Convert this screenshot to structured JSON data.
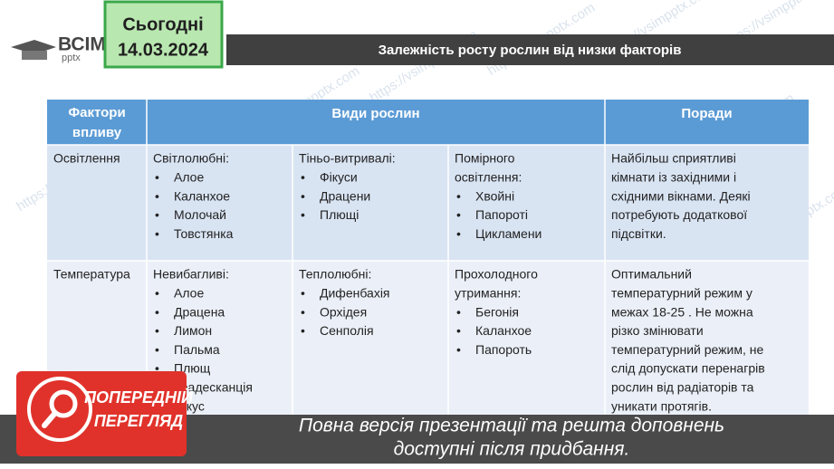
{
  "header": {
    "date_label": "Сьогодні",
    "date": "14.03.2024",
    "logo_top": "ВСІМ",
    "logo_bottom": "pptx",
    "title": "Залежність росту рослин від низки факторів"
  },
  "table": {
    "header": [
      "Фактори впливу",
      "Види рослин",
      "Поради"
    ],
    "rows": [
      {
        "factor": "Освітлення",
        "groups": [
          {
            "heading": [
              "Світлолюбні:"
            ],
            "items": [
              "Алое",
              "Каланхое",
              "Молочай",
              "Товстянка"
            ]
          },
          {
            "heading": [
              "Тіньо-витривалі:"
            ],
            "items": [
              "Фікуси",
              "Драцени",
              "Плющі"
            ]
          },
          {
            "heading": [
              "Помірного",
              "освітлення:"
            ],
            "items": [
              "Хвойні",
              "Папороті",
              "Цикламени"
            ]
          }
        ],
        "advice": [
          "Найбільш сприятливі",
          "кімнати із західними і",
          "східними вікнами. Деякі",
          "потребують додаткової",
          "підсвітки."
        ]
      },
      {
        "factor": "Температура",
        "groups": [
          {
            "heading": [
              "Невибагливі:"
            ],
            "items": [
              "Алое",
              "Драцена",
              "Лимон",
              "Пальма",
              "Плющ",
              "Традесканція",
              "Фікус"
            ]
          },
          {
            "heading": [
              "Теплолюбні:"
            ],
            "items": [
              "Дифенбахія",
              "Орхідея",
              "Сенполія"
            ]
          },
          {
            "heading": [
              "Прохолодного",
              "утримання:"
            ],
            "items": [
              "Бегонія",
              "Каланхое",
              "Папороть"
            ]
          }
        ],
        "advice": [
          "Оптимальний",
          "температурний режим у",
          "межах 18-25 . Не можна",
          "різко змінювати",
          "температурний режим, не",
          "слід допускати перенагрів",
          "рослин від радіаторів та",
          "уникати протягів."
        ]
      }
    ]
  },
  "watermark": "https://vsimpptx.com",
  "banner": {
    "badge": [
      "ПОПЕРЕДНІЙ",
      "ПЕРЕГЛЯД"
    ],
    "message": [
      "Повна версія презентації та решта доповнень",
      "доступні після придбання."
    ]
  }
}
